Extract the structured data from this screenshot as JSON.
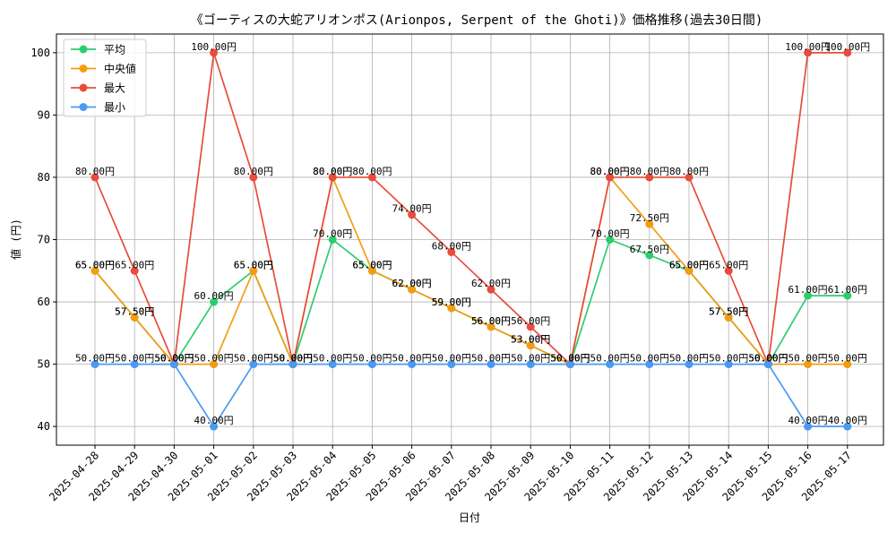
{
  "chart_data": {
    "type": "line",
    "title": "《ゴーティスの大蛇アリオンポス(Arionpos, Serpent of the Ghoti)》価格推移(過去30日間)",
    "xlabel": "日付",
    "ylabel": "値 (円)",
    "ylim": [
      37,
      103
    ],
    "yticks": [
      40,
      50,
      60,
      70,
      80,
      90,
      100
    ],
    "grid": true,
    "legend_position": "top-left",
    "label_suffix": "円",
    "categories": [
      "2025-04-28",
      "2025-04-29",
      "2025-04-30",
      "2025-05-01",
      "2025-05-02",
      "2025-05-03",
      "2025-05-04",
      "2025-05-05",
      "2025-05-06",
      "2025-05-07",
      "2025-05-08",
      "2025-05-09",
      "2025-05-10",
      "2025-05-11",
      "2025-05-12",
      "2025-05-13",
      "2025-05-14",
      "2025-05-15",
      "2025-05-16",
      "2025-05-17"
    ],
    "series": [
      {
        "name": "平均",
        "color": "#2ecc71",
        "values": [
          65,
          57.5,
          50,
          60,
          65,
          50,
          70,
          65,
          62,
          59,
          56,
          53,
          50,
          70,
          67.5,
          65,
          57.5,
          50,
          61,
          61
        ]
      },
      {
        "name": "中央値",
        "color": "#f39c12",
        "values": [
          65,
          57.5,
          50,
          50,
          65,
          50,
          80,
          65,
          62,
          59,
          56,
          53,
          50,
          80,
          72.5,
          65,
          57.5,
          50,
          50,
          50
        ]
      },
      {
        "name": "最大",
        "color": "#e74c3c",
        "values": [
          80,
          65,
          50,
          100,
          80,
          50,
          80,
          80,
          74,
          68,
          62,
          56,
          50,
          80,
          80,
          80,
          65,
          50,
          100,
          100
        ]
      },
      {
        "name": "最小",
        "color": "#4a9af0",
        "values": [
          50,
          50,
          50,
          40,
          50,
          50,
          50,
          50,
          50,
          50,
          50,
          50,
          50,
          50,
          50,
          50,
          50,
          50,
          40,
          40
        ]
      }
    ]
  }
}
